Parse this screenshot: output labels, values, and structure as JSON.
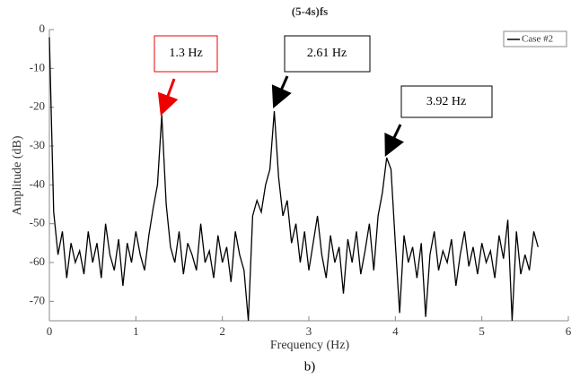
{
  "chart_data": {
    "type": "line",
    "title": "(5-4s)fs",
    "xlabel": "Frequency (Hz)",
    "ylabel": "Amplitude (dB)",
    "caption": "b)",
    "x": [
      0,
      0.05,
      0.1,
      0.15,
      0.2,
      0.25,
      0.3,
      0.35,
      0.4,
      0.45,
      0.5,
      0.55,
      0.6,
      0.65,
      0.7,
      0.75,
      0.8,
      0.85,
      0.9,
      0.95,
      1.0,
      1.05,
      1.1,
      1.15,
      1.2,
      1.25,
      1.3,
      1.35,
      1.4,
      1.45,
      1.5,
      1.55,
      1.6,
      1.65,
      1.7,
      1.75,
      1.8,
      1.85,
      1.9,
      1.95,
      2.0,
      2.05,
      2.1,
      2.15,
      2.2,
      2.25,
      2.3,
      2.35,
      2.4,
      2.45,
      2.5,
      2.55,
      2.6,
      2.65,
      2.7,
      2.75,
      2.8,
      2.85,
      2.9,
      2.95,
      3.0,
      3.05,
      3.1,
      3.15,
      3.2,
      3.25,
      3.3,
      3.35,
      3.4,
      3.45,
      3.5,
      3.55,
      3.6,
      3.65,
      3.7,
      3.75,
      3.8,
      3.85,
      3.9,
      3.95,
      4.0,
      4.05,
      4.1,
      4.15,
      4.2,
      4.25,
      4.3,
      4.35,
      4.4,
      4.45,
      4.5,
      4.55,
      4.6,
      4.65,
      4.7,
      4.75,
      4.8,
      4.85,
      4.9,
      4.95,
      5.0,
      5.05,
      5.1,
      5.15,
      5.2,
      5.25,
      5.3,
      5.35,
      5.4,
      5.45,
      5.5,
      5.55,
      5.6,
      5.65
    ],
    "series": [
      {
        "name": "Case #2",
        "color": "#000000",
        "values": [
          -2,
          -47,
          -58,
          -52,
          -64,
          -55,
          -60,
          -57,
          -63,
          -52,
          -60,
          -55,
          -64,
          -50,
          -58,
          -62,
          -54,
          -66,
          -55,
          -60,
          -52,
          -58,
          -62,
          -53,
          -46,
          -40,
          -22,
          -45,
          -56,
          -60,
          -52,
          -63,
          -55,
          -58,
          -62,
          -50,
          -60,
          -57,
          -64,
          -53,
          -60,
          -56,
          -65,
          -52,
          -58,
          -62,
          -75,
          -48,
          -44,
          -47,
          -40,
          -36,
          -21,
          -38,
          -48,
          -44,
          -55,
          -50,
          -60,
          -52,
          -62,
          -55,
          -48,
          -58,
          -64,
          -53,
          -60,
          -56,
          -68,
          -54,
          -60,
          -52,
          -63,
          -57,
          -50,
          -62,
          -48,
          -42,
          -33,
          -36,
          -55,
          -73,
          -53,
          -60,
          -56,
          -64,
          -55,
          -74,
          -58,
          -52,
          -62,
          -57,
          -60,
          -54,
          -66,
          -58,
          -52,
          -61,
          -56,
          -63,
          -55,
          -60,
          -57,
          -64,
          -53,
          -59,
          -49,
          -75,
          -52,
          -63,
          -58,
          -62,
          -52,
          -56
        ]
      }
    ],
    "xlim": [
      0,
      6
    ],
    "ylim": [
      -75,
      0
    ],
    "xticks": [
      0,
      1,
      2,
      3,
      4,
      5,
      6
    ],
    "yticks": [
      0,
      -10,
      -20,
      -30,
      -40,
      -50,
      -60,
      -70
    ],
    "legend": "upper right",
    "annotations": [
      "1.3 Hz",
      "2.61 Hz",
      "3.92 Hz"
    ]
  }
}
